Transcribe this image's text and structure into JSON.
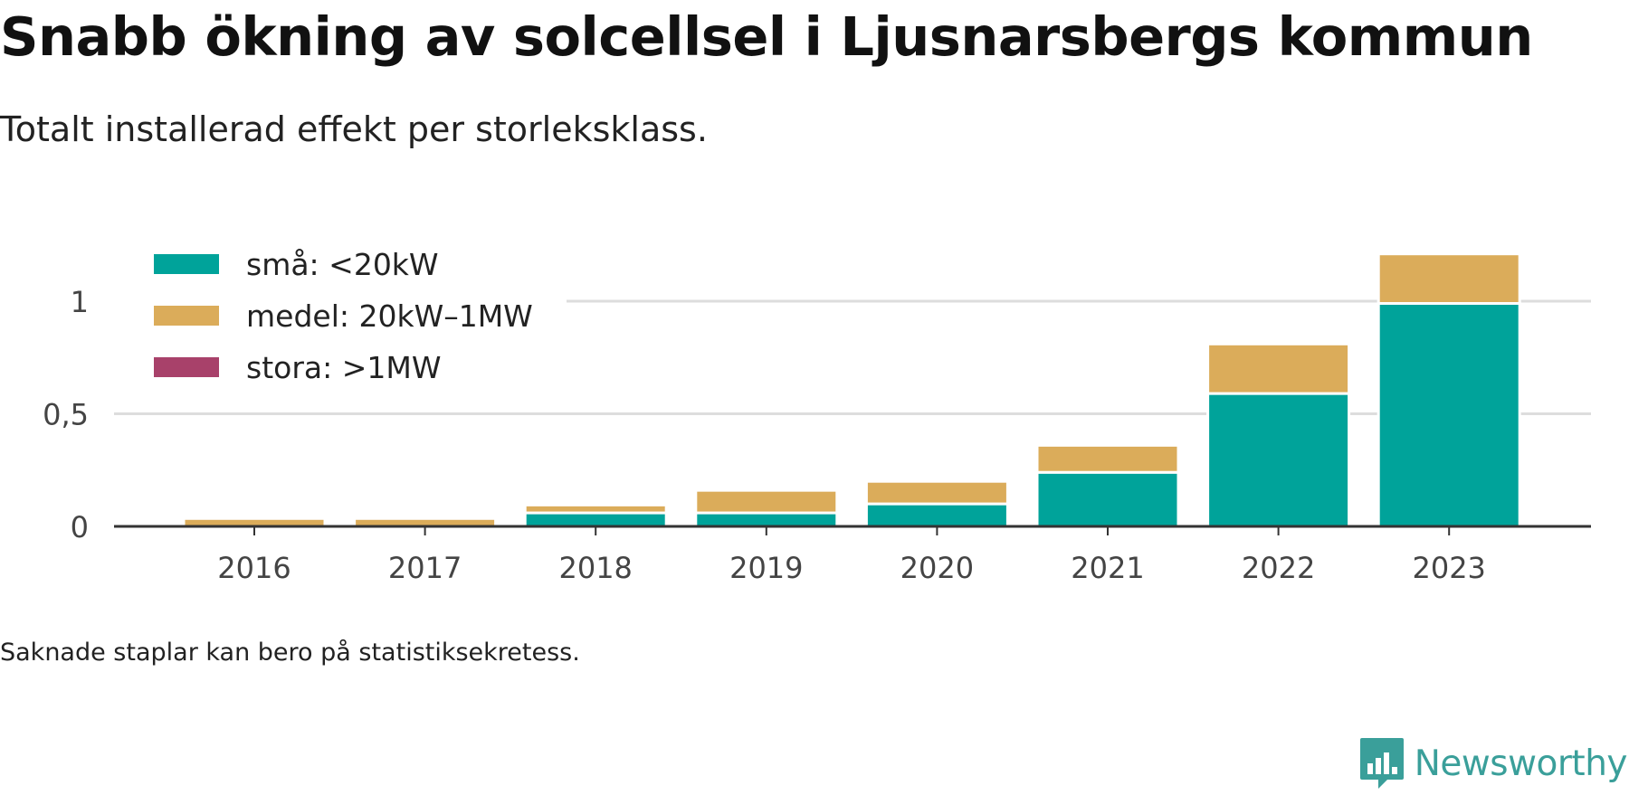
{
  "title": "Snabb ökning av solcellsel i Ljusnarsbergs kommun",
  "subtitle": "Totalt installerad effekt per storleksklass.",
  "footnote": "Saknade staplar kan bero på statistiksekretess.",
  "brand": {
    "name": "Newsworthy",
    "color": "#3a9f9a",
    "icon": "newsworthy-logo-icon"
  },
  "chart_data": {
    "type": "bar",
    "stacked": true,
    "categories": [
      "2016",
      "2017",
      "2018",
      "2019",
      "2020",
      "2021",
      "2022",
      "2023"
    ],
    "series": [
      {
        "name": "små: <20kW",
        "color": "#00a39a",
        "values": [
          0,
          0,
          0.06,
          0.06,
          0.1,
          0.24,
          0.59,
          0.99
        ]
      },
      {
        "name": "medel: 20kW–1MW",
        "color": "#dbac5a",
        "values": [
          0.035,
          0.035,
          0.035,
          0.1,
          0.1,
          0.12,
          0.22,
          0.22
        ]
      },
      {
        "name": "stora: >1MW",
        "color": "#a8416a",
        "values": [
          0,
          0,
          0,
          0,
          0,
          0,
          0,
          0
        ]
      }
    ],
    "yticks": [
      {
        "value": 0,
        "label": "0"
      },
      {
        "value": 0.5,
        "label": "0,5"
      },
      {
        "value": 1,
        "label": "1"
      }
    ],
    "ylim": [
      0,
      1.25
    ],
    "xlabel": "",
    "ylabel": "",
    "grid": true,
    "legend_position": "top-left"
  }
}
